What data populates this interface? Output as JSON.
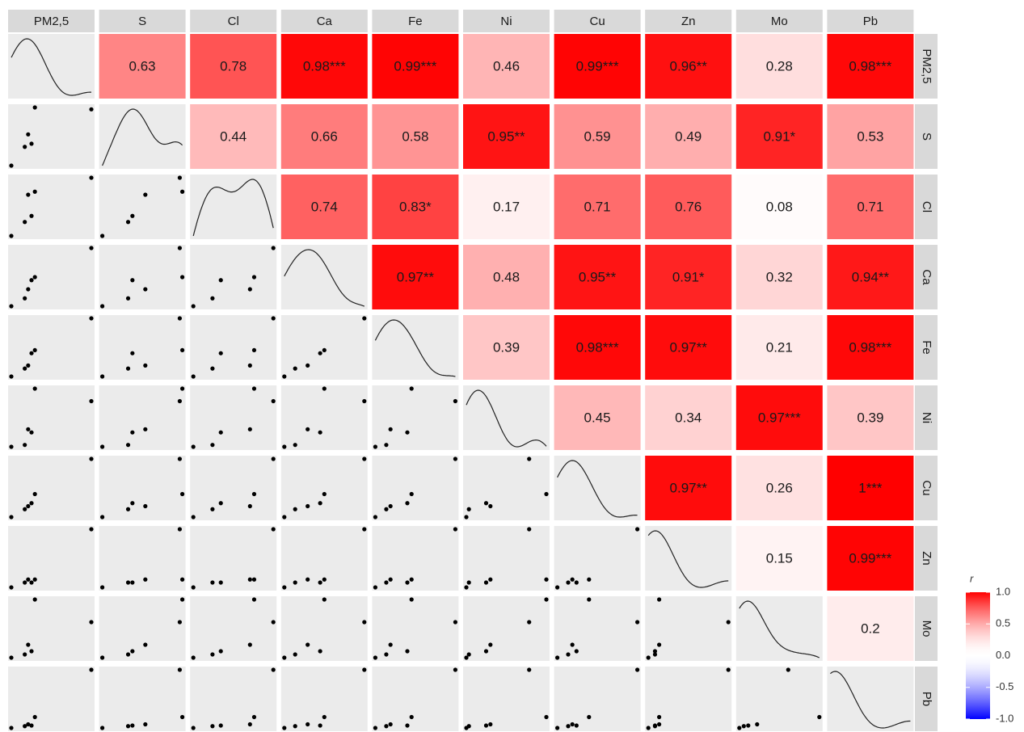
{
  "chart_data": {
    "type": "pairs",
    "variables": [
      "PM2,5",
      "S",
      "Cl",
      "Ca",
      "Fe",
      "Ni",
      "Cu",
      "Zn",
      "Mo",
      "Pb"
    ],
    "data": [
      [
        0.02,
        0.18,
        0.22,
        0.26,
        0.3,
        0.97
      ],
      [
        0.05,
        0.35,
        0.55,
        0.4,
        0.98,
        0.95
      ],
      [
        0.02,
        0.25,
        0.7,
        0.35,
        0.75,
        0.98
      ],
      [
        0.02,
        0.15,
        0.3,
        0.45,
        0.5,
        0.98
      ],
      [
        0.02,
        0.15,
        0.2,
        0.4,
        0.45,
        0.97
      ],
      [
        0.02,
        0.05,
        0.3,
        0.25,
        0.95,
        0.75
      ],
      [
        0.02,
        0.15,
        0.2,
        0.25,
        0.4,
        0.98
      ],
      [
        0.02,
        0.1,
        0.15,
        0.1,
        0.15,
        0.98
      ],
      [
        0.05,
        0.1,
        0.25,
        0.15,
        0.95,
        0.6
      ],
      [
        0.02,
        0.05,
        0.08,
        0.06,
        0.2,
        0.98
      ]
    ],
    "correlations": [
      [
        null,
        0.63,
        0.78,
        0.98,
        0.99,
        0.46,
        0.99,
        0.96,
        0.28,
        0.98
      ],
      [
        null,
        null,
        0.44,
        0.66,
        0.58,
        0.95,
        0.59,
        0.49,
        0.91,
        0.53
      ],
      [
        null,
        null,
        null,
        0.74,
        0.83,
        0.17,
        0.71,
        0.76,
        0.08,
        0.71
      ],
      [
        null,
        null,
        null,
        null,
        0.97,
        0.48,
        0.95,
        0.91,
        0.32,
        0.94
      ],
      [
        null,
        null,
        null,
        null,
        null,
        0.39,
        0.98,
        0.97,
        0.21,
        0.98
      ],
      [
        null,
        null,
        null,
        null,
        null,
        null,
        0.45,
        0.34,
        0.97,
        0.39
      ],
      [
        null,
        null,
        null,
        null,
        null,
        null,
        null,
        0.97,
        0.26,
        1
      ],
      [
        null,
        null,
        null,
        null,
        null,
        null,
        null,
        null,
        0.15,
        0.99
      ],
      [
        null,
        null,
        null,
        null,
        null,
        null,
        null,
        null,
        null,
        0.2
      ],
      [
        null,
        null,
        null,
        null,
        null,
        null,
        null,
        null,
        null,
        null
      ]
    ],
    "value_labels": [
      [
        null,
        "0.63",
        "0.78",
        "0.98***",
        "0.99***",
        "0.46",
        "0.99***",
        "0.96**",
        "0.28",
        "0.98***"
      ],
      [
        null,
        null,
        "0.44",
        "0.66",
        "0.58",
        "0.95**",
        "0.59",
        "0.49",
        "0.91*",
        "0.53"
      ],
      [
        null,
        null,
        null,
        "0.74",
        "0.83*",
        "0.17",
        "0.71",
        "0.76",
        "0.08",
        "0.71"
      ],
      [
        null,
        null,
        null,
        null,
        "0.97**",
        "0.48",
        "0.95**",
        "0.91*",
        "0.32",
        "0.94**"
      ],
      [
        null,
        null,
        null,
        null,
        null,
        "0.39",
        "0.98***",
        "0.97**",
        "0.21",
        "0.98***"
      ],
      [
        null,
        null,
        null,
        null,
        null,
        null,
        "0.45",
        "0.34",
        "0.97***",
        "0.39"
      ],
      [
        null,
        null,
        null,
        null,
        null,
        null,
        null,
        "0.97**",
        "0.26",
        "1***"
      ],
      [
        null,
        null,
        null,
        null,
        null,
        null,
        null,
        null,
        "0.15",
        "0.99***"
      ],
      [
        null,
        null,
        null,
        null,
        null,
        null,
        null,
        null,
        null,
        "0.2"
      ],
      [
        null,
        null,
        null,
        null,
        null,
        null,
        null,
        null,
        null,
        null
      ]
    ],
    "colorbar": {
      "title": "r",
      "lim": [
        -1,
        1
      ],
      "ticks": [
        {
          "value": 1,
          "label": "1.0"
        },
        {
          "value": 0.5,
          "label": "0.5"
        },
        {
          "value": 0,
          "label": "0.0"
        },
        {
          "value": -0.5,
          "label": "-0.5"
        },
        {
          "value": -1,
          "label": "-1.0"
        }
      ],
      "colors": [
        "#0000ff",
        "#ffffff",
        "#ff0000"
      ]
    },
    "panel_background": "#ebebeb",
    "strip_background": "#d9d9d9"
  }
}
